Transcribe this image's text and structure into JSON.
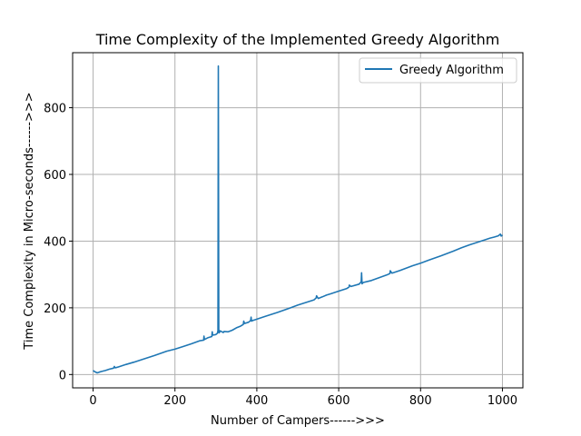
{
  "chart_data": {
    "type": "line",
    "title": "Time Complexity of the Implemented Greedy Algorithm",
    "xlabel": "Number of Campers------>>>",
    "ylabel": "Time Complexity in Micro-seconds------>>>",
    "xlim": [
      -50,
      1050
    ],
    "ylim": [
      -40,
      965
    ],
    "xticks": [
      0,
      200,
      400,
      600,
      800,
      1000
    ],
    "yticks": [
      0,
      200,
      400,
      600,
      800
    ],
    "grid": true,
    "legend_position": "top-right",
    "colors": {
      "series": "#1f77b4",
      "grid": "#b0b0b0"
    },
    "series": [
      {
        "name": "Greedy Algorithm",
        "x": [
          0,
          5,
          10,
          15,
          20,
          30,
          40,
          50,
          52,
          54,
          60,
          80,
          100,
          120,
          150,
          180,
          200,
          220,
          240,
          260,
          270,
          271,
          272,
          280,
          290,
          291,
          292,
          300,
          304,
          305,
          306,
          307,
          308,
          309,
          310,
          312,
          315,
          318,
          320,
          330,
          340,
          350,
          360,
          367,
          368,
          370,
          380,
          385,
          386,
          387,
          390,
          395,
          400,
          420,
          450,
          480,
          500,
          520,
          540,
          545,
          546,
          550,
          560,
          570,
          580,
          590,
          600,
          620,
          625,
          626,
          630,
          650,
          655,
          656,
          657,
          660,
          680,
          700,
          720,
          725,
          726,
          730,
          750,
          780,
          800,
          820,
          850,
          880,
          900,
          920,
          950,
          970,
          980,
          990,
          995,
          997,
          1000
        ],
        "y": [
          12,
          8,
          5,
          7,
          9,
          12,
          16,
          19,
          24,
          20,
          22,
          30,
          37,
          45,
          57,
          70,
          76,
          84,
          92,
          101,
          103,
          115,
          105,
          110,
          114,
          128,
          118,
          120,
          124,
          132,
          925,
          130,
          125,
          127,
          131,
          130,
          128,
          126,
          129,
          128,
          133,
          140,
          145,
          150,
          160,
          153,
          157,
          162,
          172,
          160,
          162,
          164,
          166,
          174,
          186,
          199,
          208,
          216,
          224,
          230,
          236,
          228,
          233,
          238,
          242,
          246,
          250,
          258,
          262,
          268,
          264,
          271,
          278,
          305,
          272,
          276,
          282,
          291,
          300,
          303,
          311,
          304,
          312,
          326,
          334,
          343,
          356,
          370,
          380,
          389,
          401,
          409,
          412,
          416,
          421,
          415,
          418
        ]
      }
    ]
  }
}
